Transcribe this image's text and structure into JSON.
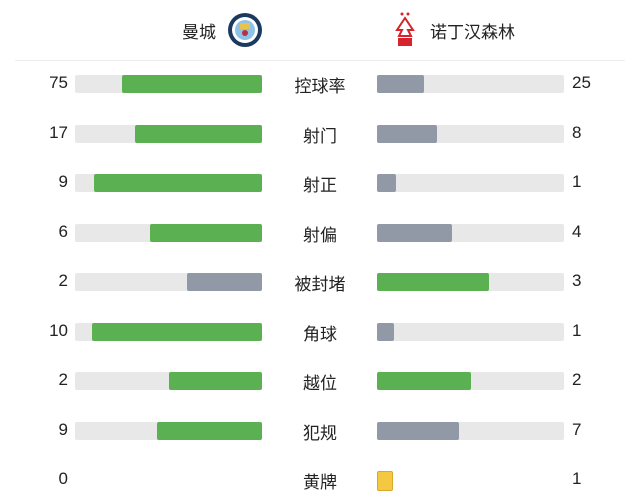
{
  "home": {
    "name": "曼城",
    "logo": "manchester-city-crest"
  },
  "away": {
    "name": "诺丁汉森林",
    "logo": "nottingham-forest-crest"
  },
  "colors": {
    "leader": "#5bb052",
    "trailer": "#9198a6",
    "track": "#e8e8e8",
    "yellow_card": "#f5c842"
  },
  "stats": [
    {
      "label": "控球率",
      "home": "75",
      "away": "25"
    },
    {
      "label": "射门",
      "home": "17",
      "away": "8"
    },
    {
      "label": "射正",
      "home": "9",
      "away": "1"
    },
    {
      "label": "射偏",
      "home": "6",
      "away": "4"
    },
    {
      "label": "被封堵",
      "home": "2",
      "away": "3"
    },
    {
      "label": "角球",
      "home": "10",
      "away": "1"
    },
    {
      "label": "越位",
      "home": "2",
      "away": "2"
    },
    {
      "label": "犯规",
      "home": "9",
      "away": "7"
    },
    {
      "label": "黄牌",
      "home": "0",
      "away": "1",
      "type": "card"
    }
  ]
}
